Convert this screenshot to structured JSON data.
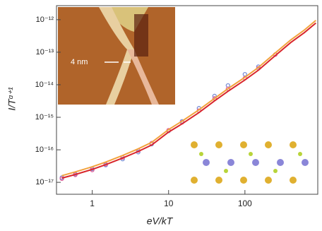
{
  "chart_data": {
    "type": "scatter",
    "x_label": "eV/kT",
    "y_label": "I/Tᵅ⁺¹",
    "annotation": "4 nm",
    "log_x": true,
    "log_y": true,
    "xlim": [
      0.34,
      900
    ],
    "ylim": [
      4.3e-18,
      2.7e-12
    ],
    "xticks": [
      1,
      10,
      100
    ],
    "yticks": [
      {
        "value": 1e-17,
        "label": "10⁻¹⁷"
      },
      {
        "value": 1e-16,
        "label": "10⁻¹⁶"
      },
      {
        "value": 1e-15,
        "label": "10⁻¹⁵"
      },
      {
        "value": 1e-14,
        "label": "10⁻¹⁴"
      },
      {
        "value": 1e-13,
        "label": "10⁻¹³"
      },
      {
        "value": 1e-12,
        "label": "10⁻¹²"
      }
    ],
    "x": [
      0.4,
      0.6,
      1,
      1.5,
      2.5,
      4,
      6,
      10,
      15,
      25,
      40,
      60,
      100,
      150,
      250,
      400,
      600,
      850
    ],
    "series": [
      {
        "style": "markers",
        "color": "#7b8fd6",
        "values": [
          1.4e-17,
          1.8e-17,
          2.6e-17,
          3.4e-17,
          5.2e-17,
          8.5e-17,
          1.5e-16,
          3.8e-16,
          7.5e-16,
          1.9e-15,
          4.5e-15,
          9.5e-15,
          2.1e-14,
          3.6e-14,
          null,
          null,
          null,
          null
        ]
      },
      {
        "style": "markers",
        "color": "#e0609a",
        "values": [
          1.3e-17,
          1.7e-17,
          2.4e-17,
          3.6e-17,
          5.8e-17,
          9.5e-17,
          1.6e-16,
          4e-16,
          7e-16,
          1.6e-15,
          3.8e-15,
          7.5e-15,
          1.6e-14,
          3.2e-14,
          8.5e-14,
          null,
          null,
          null
        ]
      },
      {
        "style": "line",
        "color": "#f2a23c",
        "values": [
          1.6e-17,
          2.1e-17,
          3e-17,
          4.2e-17,
          6.7e-17,
          1.07e-16,
          1.7e-16,
          4.2e-16,
          7.6e-16,
          1.7e-15,
          3.8e-15,
          7.6e-15,
          1.7e-14,
          3.4e-14,
          9.5e-14,
          2.4e-13,
          4.8e-13,
          9.5e-13
        ]
      },
      {
        "style": "line",
        "color": "#d8262b",
        "values": [
          1.35e-17,
          1.74e-17,
          2.5e-17,
          3.5e-17,
          5.6e-17,
          8.9e-17,
          1.4e-16,
          3.5e-16,
          6.3e-16,
          1.4e-15,
          3.2e-15,
          6.3e-15,
          1.4e-14,
          2.8e-14,
          7.9e-14,
          2e-13,
          4e-13,
          7.9e-13
        ]
      }
    ]
  }
}
